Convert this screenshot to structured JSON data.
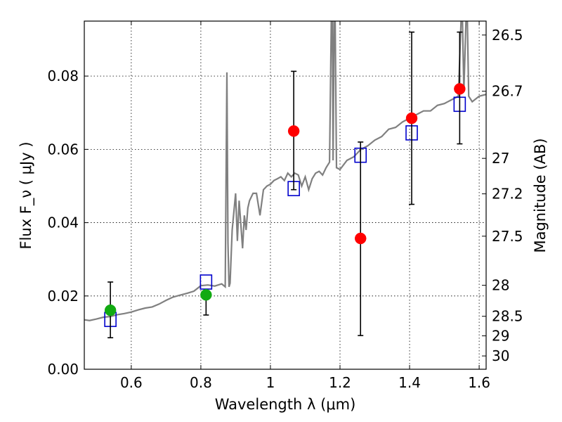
{
  "chart_data": {
    "type": "scatter",
    "xlabel": "Wavelength  λ (μm)",
    "ylabel": "Flux  F_ν  ( μJy )",
    "ylabel_right": "Magnitude (AB)",
    "xlim": [
      0.465,
      1.62
    ],
    "ylim": [
      0.0,
      0.095
    ],
    "grid": true,
    "x_ticks": [
      0.6,
      0.8,
      1.0,
      1.2,
      1.4,
      1.6
    ],
    "x_tick_labels": [
      "0.6",
      "0.8",
      "1",
      "1.2",
      "1.4",
      "1.6"
    ],
    "y_ticks": [
      0.0,
      0.02,
      0.04,
      0.06,
      0.08
    ],
    "y_tick_labels": [
      "0.00",
      "0.02",
      "0.04",
      "0.06",
      "0.08"
    ],
    "mag_ticks": [
      26.5,
      26.7,
      27,
      27.2,
      27.5,
      28,
      28.5,
      29,
      30
    ],
    "mag_tick_labels": [
      "26.5",
      "26.7",
      "27",
      "27.2",
      "27.5",
      "28",
      "28.5",
      "29",
      "30"
    ],
    "colors": {
      "model": "#808080",
      "model_points": "#0000cc",
      "green": "#11aa11",
      "red": "#ff0000",
      "errorbar": "#000000"
    },
    "model_spectrum": {
      "x": [
        0.465,
        0.48,
        0.5,
        0.52,
        0.54,
        0.56,
        0.58,
        0.6,
        0.62,
        0.64,
        0.66,
        0.68,
        0.7,
        0.72,
        0.74,
        0.76,
        0.78,
        0.8,
        0.82,
        0.84,
        0.86,
        0.87,
        0.875,
        0.878,
        0.881,
        0.884,
        0.89,
        0.9,
        0.905,
        0.91,
        0.92,
        0.925,
        0.93,
        0.935,
        0.94,
        0.95,
        0.96,
        0.97,
        0.98,
        0.99,
        1.0,
        1.01,
        1.02,
        1.03,
        1.04,
        1.05,
        1.06,
        1.07,
        1.08,
        1.09,
        1.1,
        1.11,
        1.12,
        1.13,
        1.14,
        1.15,
        1.16,
        1.17,
        1.175,
        1.178,
        1.18,
        1.183,
        1.186,
        1.19,
        1.2,
        1.22,
        1.24,
        1.26,
        1.28,
        1.3,
        1.32,
        1.34,
        1.36,
        1.38,
        1.4,
        1.42,
        1.44,
        1.46,
        1.48,
        1.5,
        1.52,
        1.54,
        1.548,
        1.552,
        1.556,
        1.562,
        1.566,
        1.57,
        1.58,
        1.6,
        1.62
      ],
      "y": [
        0.0135,
        0.0133,
        0.0137,
        0.0142,
        0.0144,
        0.0149,
        0.0152,
        0.0156,
        0.0162,
        0.0167,
        0.017,
        0.0178,
        0.0188,
        0.0197,
        0.0202,
        0.0207,
        0.0213,
        0.0228,
        0.023,
        0.0227,
        0.0233,
        0.0225,
        0.081,
        0.0345,
        0.0225,
        0.0235,
        0.038,
        0.048,
        0.035,
        0.046,
        0.033,
        0.042,
        0.038,
        0.044,
        0.046,
        0.048,
        0.048,
        0.042,
        0.049,
        0.05,
        0.0505,
        0.0515,
        0.052,
        0.0525,
        0.0515,
        0.0535,
        0.0525,
        0.0535,
        0.053,
        0.05,
        0.0525,
        0.049,
        0.052,
        0.0535,
        0.054,
        0.053,
        0.055,
        0.0565,
        0.095,
        0.095,
        0.057,
        0.095,
        0.095,
        0.055,
        0.0545,
        0.057,
        0.058,
        0.06,
        0.061,
        0.0625,
        0.0635,
        0.0655,
        0.066,
        0.0675,
        0.0685,
        0.0695,
        0.0705,
        0.0705,
        0.072,
        0.0725,
        0.0735,
        0.0745,
        0.095,
        0.095,
        0.076,
        0.095,
        0.095,
        0.0745,
        0.073,
        0.0745,
        0.075
      ]
    },
    "model_points": {
      "x": [
        0.54,
        0.815,
        1.067,
        1.259,
        1.406,
        1.544
      ],
      "y": [
        0.0136,
        0.0238,
        0.0493,
        0.0584,
        0.0645,
        0.0723
      ]
    },
    "green_points": {
      "x": [
        0.54,
        0.815
      ],
      "y": [
        0.0161,
        0.0203
      ],
      "err_low": [
        0.0075,
        0.0055
      ],
      "err_high": [
        0.0077,
        0.0
      ]
    },
    "red_points": {
      "x": [
        1.067,
        1.259,
        1.406,
        1.544
      ],
      "y": [
        0.065,
        0.0357,
        0.0685,
        0.0765
      ],
      "err_low": [
        0.016,
        0.0265,
        0.0235,
        0.015
      ],
      "err_high": [
        0.0163,
        0.0263,
        0.0235,
        0.0155
      ]
    }
  }
}
